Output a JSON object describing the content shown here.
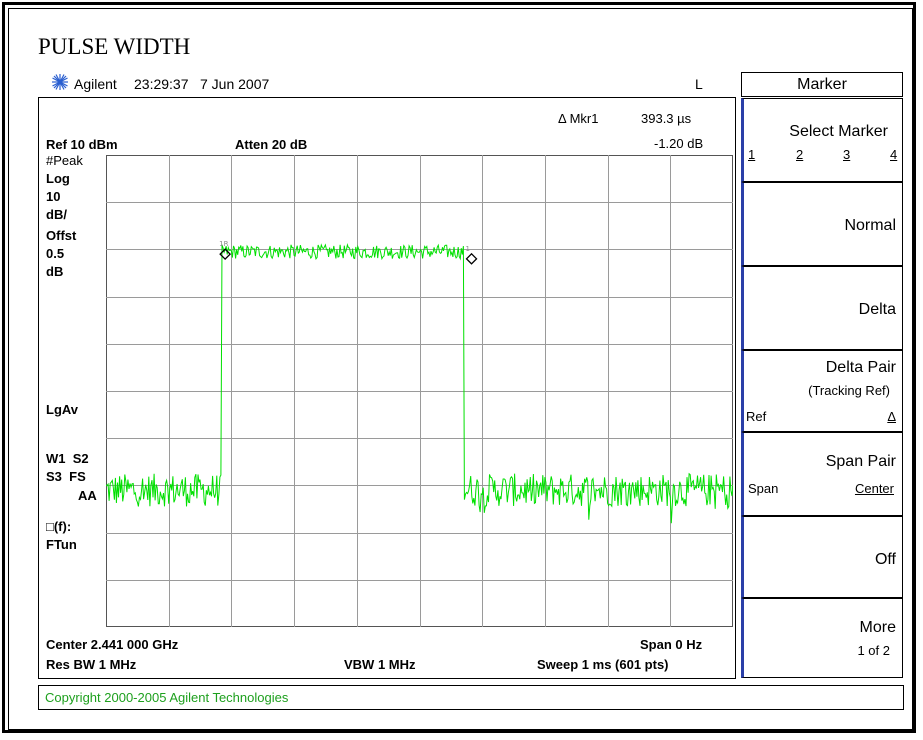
{
  "caption": "PULSE WIDTH",
  "header": {
    "brand": "Agilent",
    "time": "23:29:37",
    "date": "7 Jun 2007",
    "indicator": "L",
    "logo_icon": "agilent-spark-icon"
  },
  "marker_readout": {
    "label": "Δ Mkr1",
    "value_time": "393.3 µs",
    "value_db": "-1.20 dB"
  },
  "settings": {
    "ref": "Ref 10 dBm",
    "atten": "Atten 20 dB",
    "center": "Center 2.441 000 GHz",
    "span": "Span 0 Hz",
    "res_bw": "Res BW 1 MHz",
    "vbw": "VBW 1 MHz",
    "sweep": "Sweep 1 ms (601 pts)"
  },
  "left_labels": {
    "peak": "#Peak",
    "log": "Log",
    "ten": "10",
    "dbdiv": "dB/",
    "offst": "Offst",
    "offst_val": "0.5",
    "offst_unit": "dB",
    "lgav": "LgAv",
    "w1s2": "W1  S2",
    "s3fs": "S3  FS",
    "aa": "AA",
    "ff": "□(f):",
    "ftun": "FTun"
  },
  "softkeys": {
    "title": "Marker",
    "select_marker": {
      "label": "Select Marker",
      "options": [
        "1",
        "2",
        "3",
        "4"
      ]
    },
    "normal": "Normal",
    "delta": "Delta",
    "delta_pair": {
      "label": "Delta Pair",
      "sub": "(Tracking Ref)",
      "left": "Ref",
      "right": "Δ"
    },
    "span_pair": {
      "label": "Span Pair",
      "left": "Span",
      "right": "Center"
    },
    "off": "Off",
    "more": {
      "label": "More",
      "sub": "1 of 2"
    }
  },
  "copyright": "Copyright 2000-2005 Agilent Technologies",
  "chart_data": {
    "type": "line",
    "xlim": [
      0,
      1
    ],
    "ylim": [
      -90,
      10
    ],
    "grid": true,
    "trace_color": "#00e000",
    "pulse": {
      "start": 0.185,
      "end": 0.57,
      "high_level": -10.5,
      "low_level": -61,
      "high_jitter": 1.5,
      "low_jitter": 3.5
    },
    "markers": [
      {
        "id": "1R",
        "x": 0.19,
        "y": -11
      },
      {
        "id": "1",
        "x": 0.583,
        "y": -12
      }
    ]
  }
}
